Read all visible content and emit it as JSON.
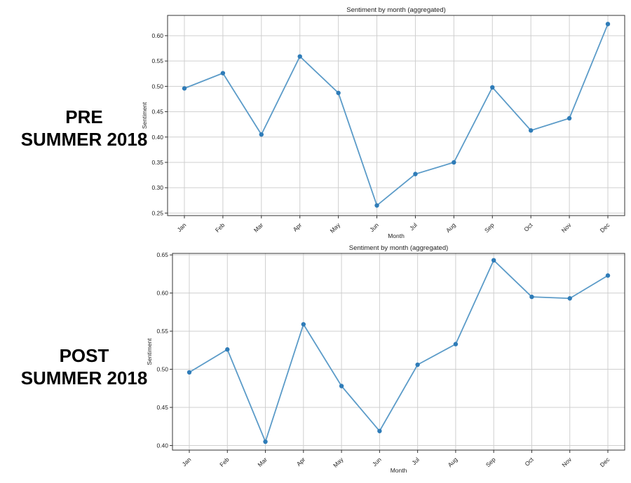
{
  "labels": {
    "pre": [
      "PRE",
      "SUMMER 2018"
    ],
    "post": [
      "POST",
      "SUMMER 2018"
    ]
  },
  "chart_data": [
    {
      "type": "line",
      "title": "Sentiment by month (aggregated)",
      "xlabel": "Month",
      "ylabel": "Sentiment",
      "categories": [
        "Jan",
        "Feb",
        "Mar",
        "Apr",
        "May",
        "Jun",
        "Jul",
        "Aug",
        "Sep",
        "Oct",
        "Nov",
        "Dec"
      ],
      "values": [
        0.496,
        0.526,
        0.405,
        0.559,
        0.487,
        0.265,
        0.327,
        0.35,
        0.498,
        0.413,
        0.437,
        0.623
      ],
      "yticks": [
        "0.25",
        "0.30",
        "0.35",
        "0.40",
        "0.45",
        "0.50",
        "0.55",
        "0.60"
      ],
      "ylim": [
        0.245,
        0.64
      ],
      "grid": true,
      "color": "#2f7cb8"
    },
    {
      "type": "line",
      "title": "Sentiment by month (aggregated)",
      "xlabel": "Month",
      "ylabel": "Sentiment",
      "categories": [
        "Jan",
        "Feb",
        "Mar",
        "Apr",
        "May",
        "Jun",
        "Jul",
        "Aug",
        "Sep",
        "Oct",
        "Nov",
        "Dec"
      ],
      "values": [
        0.496,
        0.526,
        0.405,
        0.559,
        0.478,
        0.419,
        0.506,
        0.533,
        0.643,
        0.595,
        0.593,
        0.623
      ],
      "yticks": [
        "0.40",
        "0.45",
        "0.50",
        "0.55",
        "0.60",
        "0.65"
      ],
      "ylim": [
        0.394,
        0.652
      ],
      "grid": true,
      "color": "#2f7cb8"
    }
  ]
}
